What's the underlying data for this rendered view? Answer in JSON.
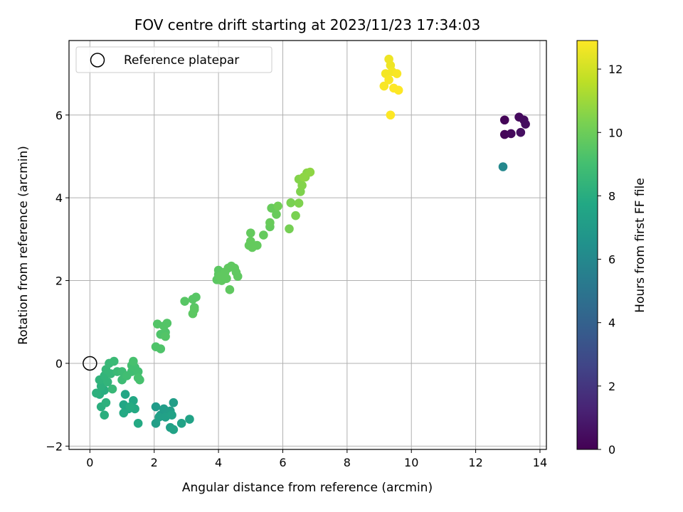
{
  "chart_data": {
    "type": "scatter",
    "title": "FOV centre drift starting at 2023/11/23 17:34:03",
    "xlabel": "Angular distance from reference (arcmin)",
    "ylabel": "Rotation from reference (arcmin)",
    "xlim": [
      -0.65,
      14.2
    ],
    "ylim": [
      -2.08,
      7.8
    ],
    "xticks": [
      "0",
      "2",
      "4",
      "6",
      "8",
      "10",
      "12",
      "14"
    ],
    "yticks": [
      "−2",
      "0",
      "2",
      "4",
      "6"
    ],
    "xtick_values": [
      0,
      2,
      4,
      6,
      8,
      10,
      12,
      14
    ],
    "ytick_values": [
      -2,
      0,
      2,
      4,
      6
    ],
    "grid": true,
    "legend": {
      "position": "top-left",
      "entries": [
        "Reference platepar"
      ]
    },
    "reference_point": {
      "x": 0,
      "y": 0
    },
    "colorbar": {
      "label": "Hours from first FF file",
      "colormap": "viridis",
      "range": [
        0,
        12.9
      ],
      "ticks": [
        "0",
        "2",
        "4",
        "6",
        "8",
        "10",
        "12"
      ],
      "tick_values": [
        0,
        2,
        4,
        6,
        8,
        10,
        12
      ]
    },
    "points": [
      {
        "x": 12.9,
        "y": 5.88,
        "c": 0.1
      },
      {
        "x": 12.9,
        "y": 5.53,
        "c": 0.2
      },
      {
        "x": 13.1,
        "y": 5.55,
        "c": 0.3
      },
      {
        "x": 13.35,
        "y": 5.95,
        "c": 0.35
      },
      {
        "x": 13.5,
        "y": 5.88,
        "c": 0.4
      },
      {
        "x": 13.55,
        "y": 5.78,
        "c": 0.45
      },
      {
        "x": 13.4,
        "y": 5.58,
        "c": 0.5
      },
      {
        "x": 12.85,
        "y": 4.75,
        "c": 6.0
      },
      {
        "x": 2.05,
        "y": -1.05,
        "c": 7.0
      },
      {
        "x": 2.2,
        "y": -1.25,
        "c": 7.0
      },
      {
        "x": 2.3,
        "y": -1.1,
        "c": 7.1
      },
      {
        "x": 2.4,
        "y": -1.2,
        "c": 7.1
      },
      {
        "x": 2.5,
        "y": -1.15,
        "c": 7.2
      },
      {
        "x": 2.6,
        "y": -0.95,
        "c": 7.2
      },
      {
        "x": 2.05,
        "y": -1.45,
        "c": 7.2
      },
      {
        "x": 2.15,
        "y": -1.3,
        "c": 7.3
      },
      {
        "x": 2.35,
        "y": -1.3,
        "c": 7.3
      },
      {
        "x": 2.5,
        "y": -1.55,
        "c": 7.3
      },
      {
        "x": 2.6,
        "y": -1.6,
        "c": 7.4
      },
      {
        "x": 2.85,
        "y": -1.45,
        "c": 7.4
      },
      {
        "x": 3.1,
        "y": -1.35,
        "c": 7.4
      },
      {
        "x": 2.55,
        "y": -1.25,
        "c": 7.4
      },
      {
        "x": 1.1,
        "y": -0.75,
        "c": 7.6
      },
      {
        "x": 1.05,
        "y": -1.0,
        "c": 7.6
      },
      {
        "x": 1.2,
        "y": -1.1,
        "c": 7.7
      },
      {
        "x": 1.35,
        "y": -0.9,
        "c": 7.7
      },
      {
        "x": 1.05,
        "y": -1.2,
        "c": 7.8
      },
      {
        "x": 1.4,
        "y": -1.1,
        "c": 7.8
      },
      {
        "x": 1.5,
        "y": -1.45,
        "c": 7.8
      },
      {
        "x": 1.25,
        "y": -1.05,
        "c": 7.9
      },
      {
        "x": 0.3,
        "y": -0.75,
        "c": 8.0
      },
      {
        "x": 0.45,
        "y": -0.65,
        "c": 8.0
      },
      {
        "x": 0.35,
        "y": -1.05,
        "c": 8.1
      },
      {
        "x": 0.45,
        "y": -1.25,
        "c": 8.1
      },
      {
        "x": 0.5,
        "y": -0.95,
        "c": 8.2
      },
      {
        "x": 0.2,
        "y": -0.72,
        "c": 8.2
      },
      {
        "x": 0.35,
        "y": -0.55,
        "c": 8.2
      },
      {
        "x": 0.3,
        "y": -0.4,
        "c": 8.3
      },
      {
        "x": 0.45,
        "y": -0.3,
        "c": 8.4
      },
      {
        "x": 0.55,
        "y": -0.45,
        "c": 8.4
      },
      {
        "x": 0.5,
        "y": -0.15,
        "c": 8.5
      },
      {
        "x": 0.65,
        "y": -0.25,
        "c": 8.5
      },
      {
        "x": 0.7,
        "y": -0.62,
        "c": 8.6
      },
      {
        "x": 0.6,
        "y": 0.0,
        "c": 8.6
      },
      {
        "x": 0.75,
        "y": 0.05,
        "c": 8.7
      },
      {
        "x": 0.85,
        "y": -0.2,
        "c": 8.7
      },
      {
        "x": 1.0,
        "y": -0.2,
        "c": 8.8
      },
      {
        "x": 1.0,
        "y": -0.4,
        "c": 8.8
      },
      {
        "x": 1.15,
        "y": -0.3,
        "c": 8.9
      },
      {
        "x": 1.3,
        "y": -0.2,
        "c": 8.9
      },
      {
        "x": 1.3,
        "y": -0.05,
        "c": 9.0
      },
      {
        "x": 1.4,
        "y": -0.1,
        "c": 9.0
      },
      {
        "x": 1.5,
        "y": -0.2,
        "c": 9.0
      },
      {
        "x": 1.55,
        "y": -0.4,
        "c": 9.1
      },
      {
        "x": 1.35,
        "y": 0.05,
        "c": 9.1
      },
      {
        "x": 1.5,
        "y": -0.35,
        "c": 9.1
      },
      {
        "x": 2.05,
        "y": 0.4,
        "c": 9.3
      },
      {
        "x": 2.2,
        "y": 0.35,
        "c": 9.3
      },
      {
        "x": 2.2,
        "y": 0.7,
        "c": 9.3
      },
      {
        "x": 2.35,
        "y": 0.75,
        "c": 9.3
      },
      {
        "x": 2.1,
        "y": 0.95,
        "c": 9.4
      },
      {
        "x": 2.3,
        "y": 0.9,
        "c": 9.4
      },
      {
        "x": 2.4,
        "y": 0.97,
        "c": 9.4
      },
      {
        "x": 2.35,
        "y": 0.65,
        "c": 9.4
      },
      {
        "x": 2.95,
        "y": 1.5,
        "c": 9.5
      },
      {
        "x": 3.2,
        "y": 1.55,
        "c": 9.5
      },
      {
        "x": 3.3,
        "y": 1.6,
        "c": 9.5
      },
      {
        "x": 3.25,
        "y": 1.35,
        "c": 9.5
      },
      {
        "x": 3.25,
        "y": 1.3,
        "c": 9.6
      },
      {
        "x": 3.2,
        "y": 1.2,
        "c": 9.6
      },
      {
        "x": 3.95,
        "y": 2.02,
        "c": 9.6
      },
      {
        "x": 4.0,
        "y": 2.15,
        "c": 9.6
      },
      {
        "x": 4.1,
        "y": 2.2,
        "c": 9.6
      },
      {
        "x": 4.0,
        "y": 2.25,
        "c": 9.6
      },
      {
        "x": 4.2,
        "y": 2.2,
        "c": 9.7
      },
      {
        "x": 4.3,
        "y": 2.3,
        "c": 9.7
      },
      {
        "x": 4.1,
        "y": 2.0,
        "c": 9.7
      },
      {
        "x": 4.25,
        "y": 2.05,
        "c": 9.7
      },
      {
        "x": 4.4,
        "y": 2.35,
        "c": 9.7
      },
      {
        "x": 4.5,
        "y": 2.3,
        "c": 9.7
      },
      {
        "x": 4.55,
        "y": 2.2,
        "c": 9.7
      },
      {
        "x": 4.6,
        "y": 2.1,
        "c": 9.7
      },
      {
        "x": 4.35,
        "y": 1.78,
        "c": 9.7
      },
      {
        "x": 4.05,
        "y": 2.1,
        "c": 9.7
      },
      {
        "x": 4.95,
        "y": 2.85,
        "c": 9.8
      },
      {
        "x": 5.0,
        "y": 2.95,
        "c": 9.8
      },
      {
        "x": 5.05,
        "y": 2.8,
        "c": 9.8
      },
      {
        "x": 5.2,
        "y": 2.85,
        "c": 9.8
      },
      {
        "x": 5.0,
        "y": 3.15,
        "c": 9.8
      },
      {
        "x": 5.4,
        "y": 3.1,
        "c": 9.8
      },
      {
        "x": 5.6,
        "y": 3.3,
        "c": 9.8
      },
      {
        "x": 5.6,
        "y": 3.4,
        "c": 9.9
      },
      {
        "x": 5.8,
        "y": 3.6,
        "c": 9.9
      },
      {
        "x": 5.65,
        "y": 3.75,
        "c": 9.9
      },
      {
        "x": 5.85,
        "y": 3.8,
        "c": 10.1
      },
      {
        "x": 6.2,
        "y": 3.25,
        "c": 10.2
      },
      {
        "x": 6.25,
        "y": 3.88,
        "c": 10.3
      },
      {
        "x": 6.4,
        "y": 3.57,
        "c": 10.3
      },
      {
        "x": 6.5,
        "y": 3.87,
        "c": 10.4
      },
      {
        "x": 6.55,
        "y": 4.15,
        "c": 10.4
      },
      {
        "x": 6.6,
        "y": 4.3,
        "c": 10.5
      },
      {
        "x": 6.5,
        "y": 4.45,
        "c": 10.5
      },
      {
        "x": 6.7,
        "y": 4.5,
        "c": 10.6
      },
      {
        "x": 6.75,
        "y": 4.6,
        "c": 10.6
      },
      {
        "x": 6.85,
        "y": 4.62,
        "c": 10.7
      },
      {
        "x": 6.65,
        "y": 4.5,
        "c": 10.7
      },
      {
        "x": 9.3,
        "y": 7.35,
        "c": 12.6
      },
      {
        "x": 9.35,
        "y": 7.2,
        "c": 12.6
      },
      {
        "x": 9.2,
        "y": 7.0,
        "c": 12.7
      },
      {
        "x": 9.4,
        "y": 7.05,
        "c": 12.7
      },
      {
        "x": 9.55,
        "y": 7.0,
        "c": 12.8
      },
      {
        "x": 9.3,
        "y": 6.85,
        "c": 12.8
      },
      {
        "x": 9.15,
        "y": 6.7,
        "c": 12.8
      },
      {
        "x": 9.45,
        "y": 6.65,
        "c": 12.9
      },
      {
        "x": 9.6,
        "y": 6.6,
        "c": 12.9
      },
      {
        "x": 9.35,
        "y": 6.0,
        "c": 12.9
      }
    ]
  }
}
